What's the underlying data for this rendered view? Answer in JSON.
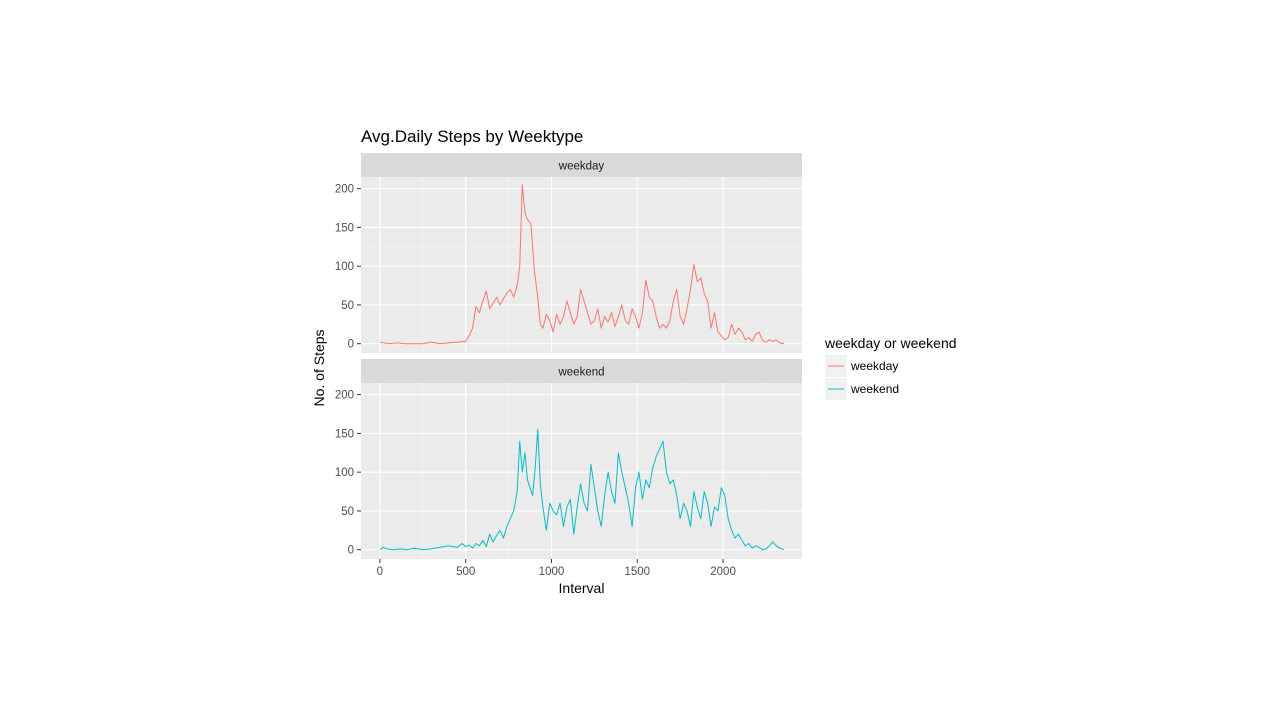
{
  "chart_data": {
    "type": "line",
    "title": "Avg.Daily Steps by Weektype",
    "xlabel": "Interval",
    "ylabel": "No. of Steps",
    "xlim": [
      -110,
      2460
    ],
    "ylim": [
      -12,
      215
    ],
    "x_ticks": [
      0,
      500,
      1000,
      1500,
      2000
    ],
    "x_tick_labels": [
      "0",
      "500",
      "1000",
      "1500",
      "2000"
    ],
    "y_ticks": [
      0,
      50,
      100,
      150,
      200
    ],
    "y_tick_labels": [
      "0",
      "50",
      "100",
      "150",
      "200"
    ],
    "grid": true,
    "legend": {
      "title": "weekday or weekend",
      "position": "right",
      "entries": [
        "weekday",
        "weekend"
      ]
    },
    "colors": {
      "weekday": "#F8766D",
      "weekend": "#00BFC4"
    },
    "series": [
      {
        "name": "weekday",
        "x": [
          0,
          50,
          100,
          150,
          200,
          250,
          300,
          350,
          400,
          450,
          500,
          520,
          540,
          560,
          580,
          600,
          620,
          640,
          660,
          680,
          700,
          720,
          740,
          760,
          780,
          800,
          815,
          830,
          845,
          860,
          880,
          900,
          920,
          935,
          950,
          970,
          990,
          1010,
          1030,
          1050,
          1070,
          1090,
          1110,
          1130,
          1150,
          1170,
          1190,
          1210,
          1230,
          1250,
          1270,
          1290,
          1310,
          1330,
          1350,
          1370,
          1390,
          1410,
          1430,
          1450,
          1470,
          1490,
          1510,
          1530,
          1550,
          1570,
          1590,
          1610,
          1630,
          1650,
          1670,
          1690,
          1710,
          1730,
          1750,
          1770,
          1790,
          1810,
          1830,
          1850,
          1870,
          1890,
          1910,
          1930,
          1950,
          1970,
          1990,
          2010,
          2030,
          2050,
          2070,
          2090,
          2110,
          2130,
          2150,
          2170,
          2190,
          2210,
          2230,
          2250,
          2270,
          2290,
          2310,
          2330,
          2355
        ],
        "values": [
          2,
          0,
          1,
          0,
          0,
          0,
          2,
          0,
          1,
          2,
          3,
          10,
          20,
          48,
          40,
          55,
          68,
          45,
          52,
          60,
          50,
          58,
          65,
          70,
          60,
          75,
          100,
          205,
          170,
          160,
          155,
          95,
          60,
          25,
          20,
          38,
          30,
          15,
          38,
          25,
          35,
          55,
          40,
          25,
          35,
          70,
          55,
          40,
          25,
          30,
          45,
          20,
          35,
          28,
          40,
          22,
          35,
          50,
          30,
          25,
          45,
          35,
          20,
          40,
          82,
          60,
          55,
          35,
          20,
          25,
          20,
          30,
          55,
          70,
          35,
          25,
          45,
          70,
          102,
          80,
          85,
          65,
          55,
          20,
          40,
          15,
          10,
          5,
          8,
          25,
          12,
          20,
          15,
          5,
          8,
          3,
          12,
          15,
          4,
          2,
          5,
          3,
          5,
          1,
          0
        ]
      },
      {
        "name": "weekend",
        "x": [
          0,
          20,
          40,
          80,
          120,
          160,
          200,
          250,
          300,
          350,
          400,
          450,
          480,
          500,
          520,
          540,
          560,
          580,
          600,
          620,
          640,
          660,
          680,
          700,
          720,
          740,
          760,
          780,
          800,
          815,
          830,
          845,
          860,
          875,
          890,
          905,
          920,
          935,
          950,
          970,
          990,
          1010,
          1030,
          1050,
          1070,
          1090,
          1110,
          1130,
          1150,
          1170,
          1190,
          1210,
          1230,
          1250,
          1270,
          1290,
          1310,
          1330,
          1350,
          1370,
          1390,
          1410,
          1430,
          1450,
          1470,
          1490,
          1510,
          1530,
          1550,
          1570,
          1590,
          1610,
          1630,
          1650,
          1670,
          1690,
          1710,
          1730,
          1750,
          1770,
          1790,
          1810,
          1830,
          1850,
          1870,
          1890,
          1910,
          1930,
          1950,
          1970,
          1990,
          2010,
          2030,
          2050,
          2070,
          2090,
          2110,
          2130,
          2150,
          2170,
          2190,
          2210,
          2230,
          2250,
          2270,
          2290,
          2310,
          2330,
          2355
        ],
        "values": [
          0,
          3,
          1,
          0,
          1,
          0,
          2,
          0,
          1,
          3,
          5,
          3,
          8,
          4,
          6,
          2,
          8,
          5,
          12,
          4,
          20,
          10,
          18,
          25,
          15,
          30,
          40,
          50,
          75,
          140,
          100,
          125,
          90,
          80,
          70,
          105,
          155,
          85,
          55,
          25,
          60,
          50,
          45,
          60,
          30,
          55,
          65,
          20,
          55,
          85,
          60,
          50,
          110,
          80,
          50,
          30,
          70,
          100,
          75,
          60,
          125,
          100,
          80,
          60,
          30,
          80,
          100,
          65,
          90,
          80,
          105,
          120,
          130,
          140,
          100,
          85,
          90,
          70,
          40,
          60,
          50,
          30,
          75,
          55,
          40,
          75,
          60,
          30,
          55,
          50,
          80,
          70,
          40,
          25,
          15,
          20,
          12,
          5,
          8,
          2,
          5,
          3,
          0,
          1,
          5,
          10,
          5,
          2,
          0
        ]
      }
    ]
  }
}
